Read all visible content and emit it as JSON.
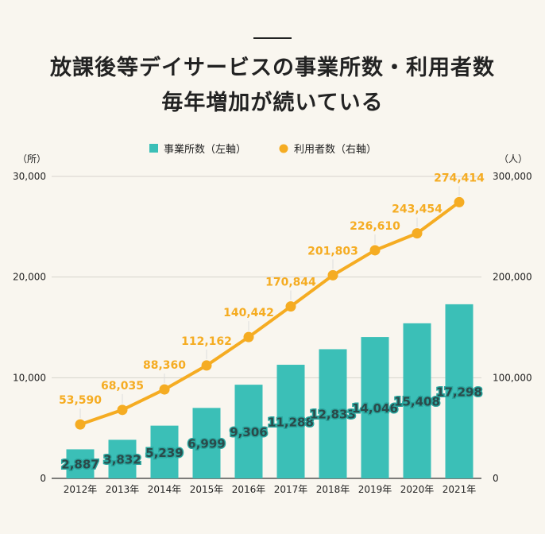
{
  "title_lines": [
    "放課後等デイサービスの事業所数・利用者数",
    "毎年増加が続いている"
  ],
  "chart_data": {
    "type": "bar+line",
    "categories": [
      "2012年",
      "2013年",
      "2014年",
      "2015年",
      "2016年",
      "2017年",
      "2018年",
      "2019年",
      "2020年",
      "2021年"
    ],
    "series": [
      {
        "name": "事業所数（左軸）",
        "type": "bar",
        "axis": "left",
        "color": "#3bbfb7",
        "values": [
          2887,
          3832,
          5239,
          6999,
          9306,
          11288,
          12833,
          14046,
          15408,
          17298
        ],
        "labels": [
          "2,887",
          "3,832",
          "5,239",
          "6,999",
          "9,306",
          "11,288",
          "12,833",
          "14,046",
          "15,408",
          "17,298"
        ]
      },
      {
        "name": "利用者数（右軸）",
        "type": "line",
        "axis": "right",
        "color": "#f5ac22",
        "values": [
          53590,
          68035,
          88360,
          112162,
          140442,
          170844,
          201803,
          226610,
          243454,
          274414
        ],
        "labels": [
          "53,590",
          "68,035",
          "88,360",
          "112,162",
          "140,442",
          "170,844",
          "201,803",
          "226,610",
          "243,454",
          "274,414"
        ]
      }
    ],
    "left_axis": {
      "unit": "（所）",
      "ylim": [
        0,
        30000
      ],
      "ticks": [
        "0",
        "10,000",
        "20,000",
        "30,000"
      ]
    },
    "right_axis": {
      "unit": "（人）",
      "ylim": [
        0,
        300000
      ],
      "ticks": [
        "0",
        "100,000",
        "200,000",
        "300,000"
      ]
    },
    "grid": true,
    "legend": "top"
  }
}
